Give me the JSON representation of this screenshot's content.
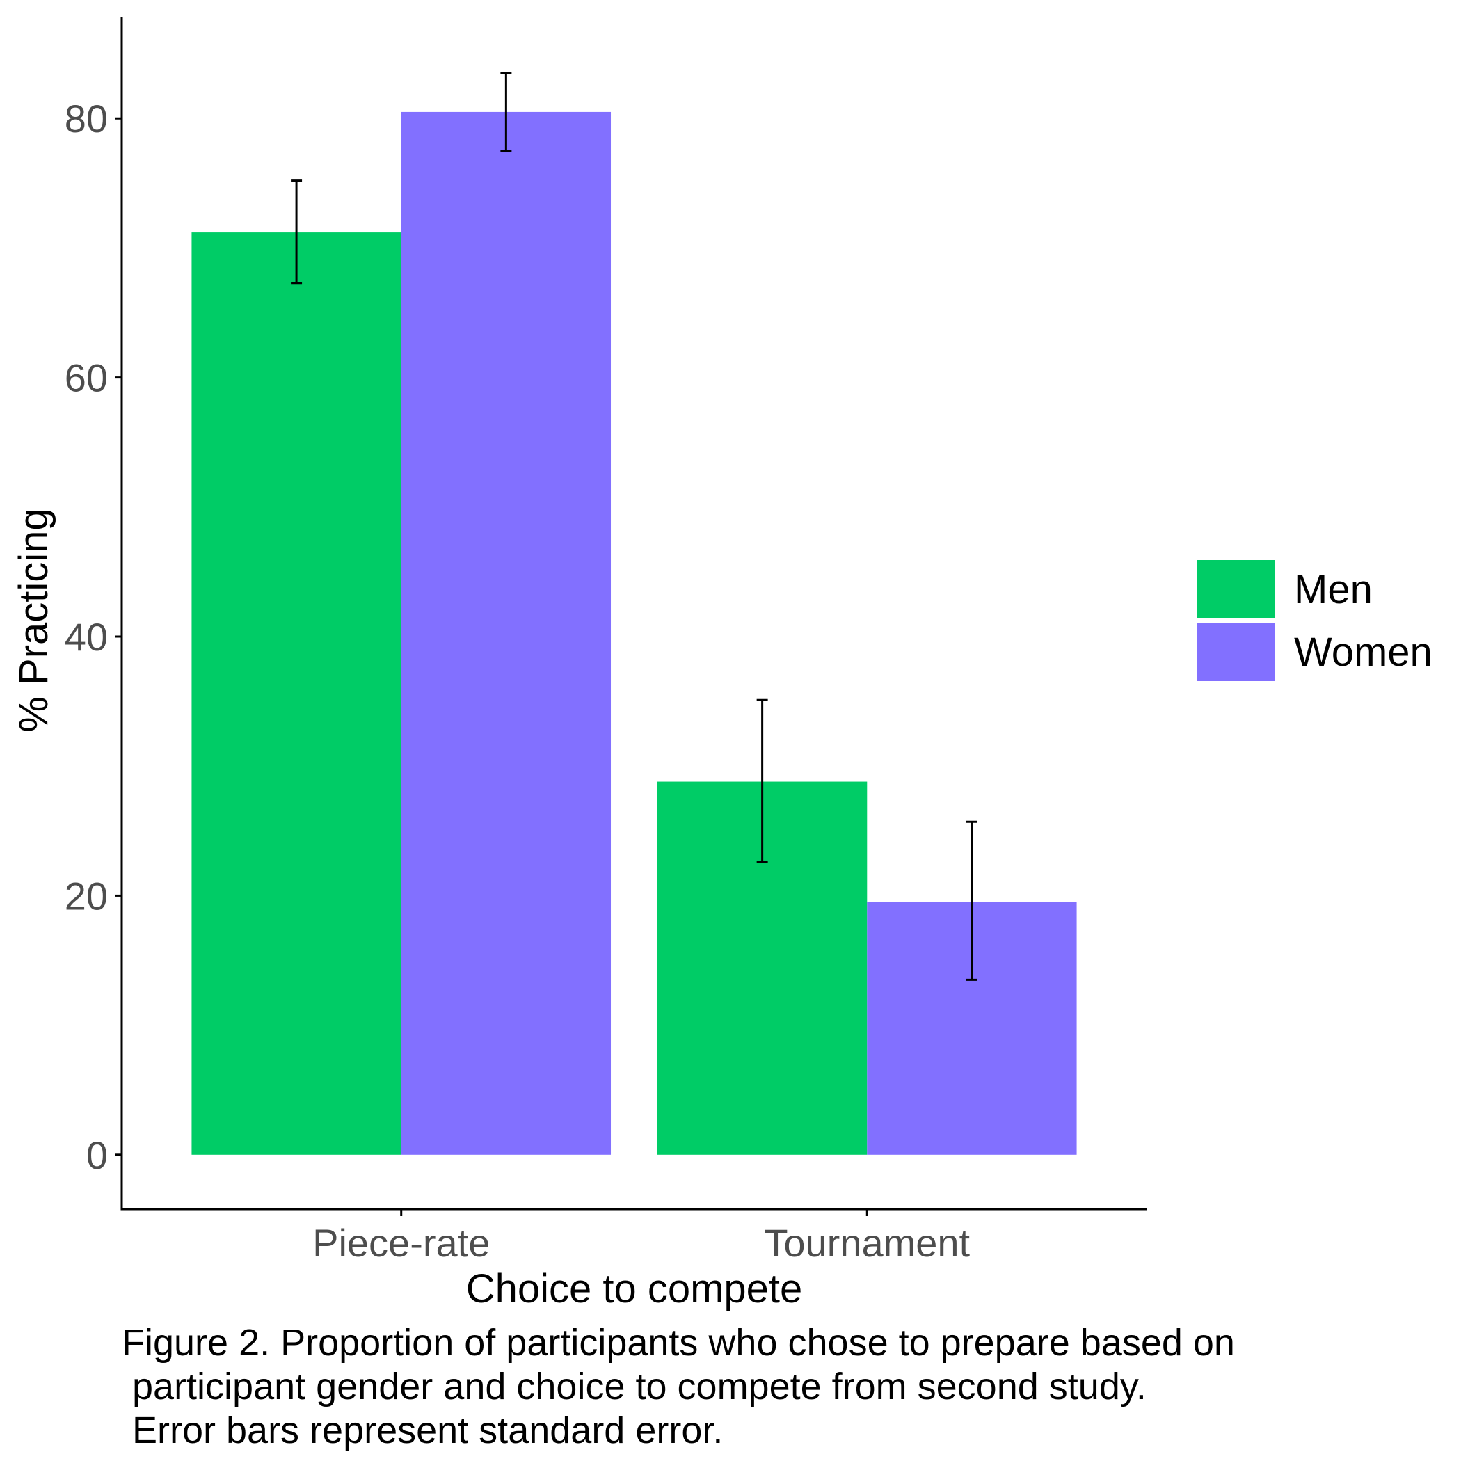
{
  "chart_data": {
    "type": "bar",
    "categories": [
      "Piece-rate",
      "Tournament"
    ],
    "series": [
      {
        "name": "Men",
        "color": "#00CC66",
        "values": [
          71.2,
          28.8
        ],
        "error_low": [
          67.3,
          22.6
        ],
        "error_high": [
          75.2,
          35.1
        ]
      },
      {
        "name": "Women",
        "color": "#8270FF",
        "values": [
          80.5,
          19.5
        ],
        "error_low": [
          77.5,
          13.5
        ],
        "error_high": [
          83.5,
          25.7
        ]
      }
    ],
    "xlabel": "Choice to compete",
    "ylabel": "% Practicing",
    "ylim": [
      -4.2,
      87.8
    ],
    "yticks": [
      0,
      20,
      40,
      60,
      80
    ],
    "grid": false,
    "legend_position": "right",
    "caption": [
      "Figure 2. Proportion of participants who chose to prepare based on",
      " participant gender and choice to compete from second study.",
      " Error bars represent standard error."
    ]
  }
}
